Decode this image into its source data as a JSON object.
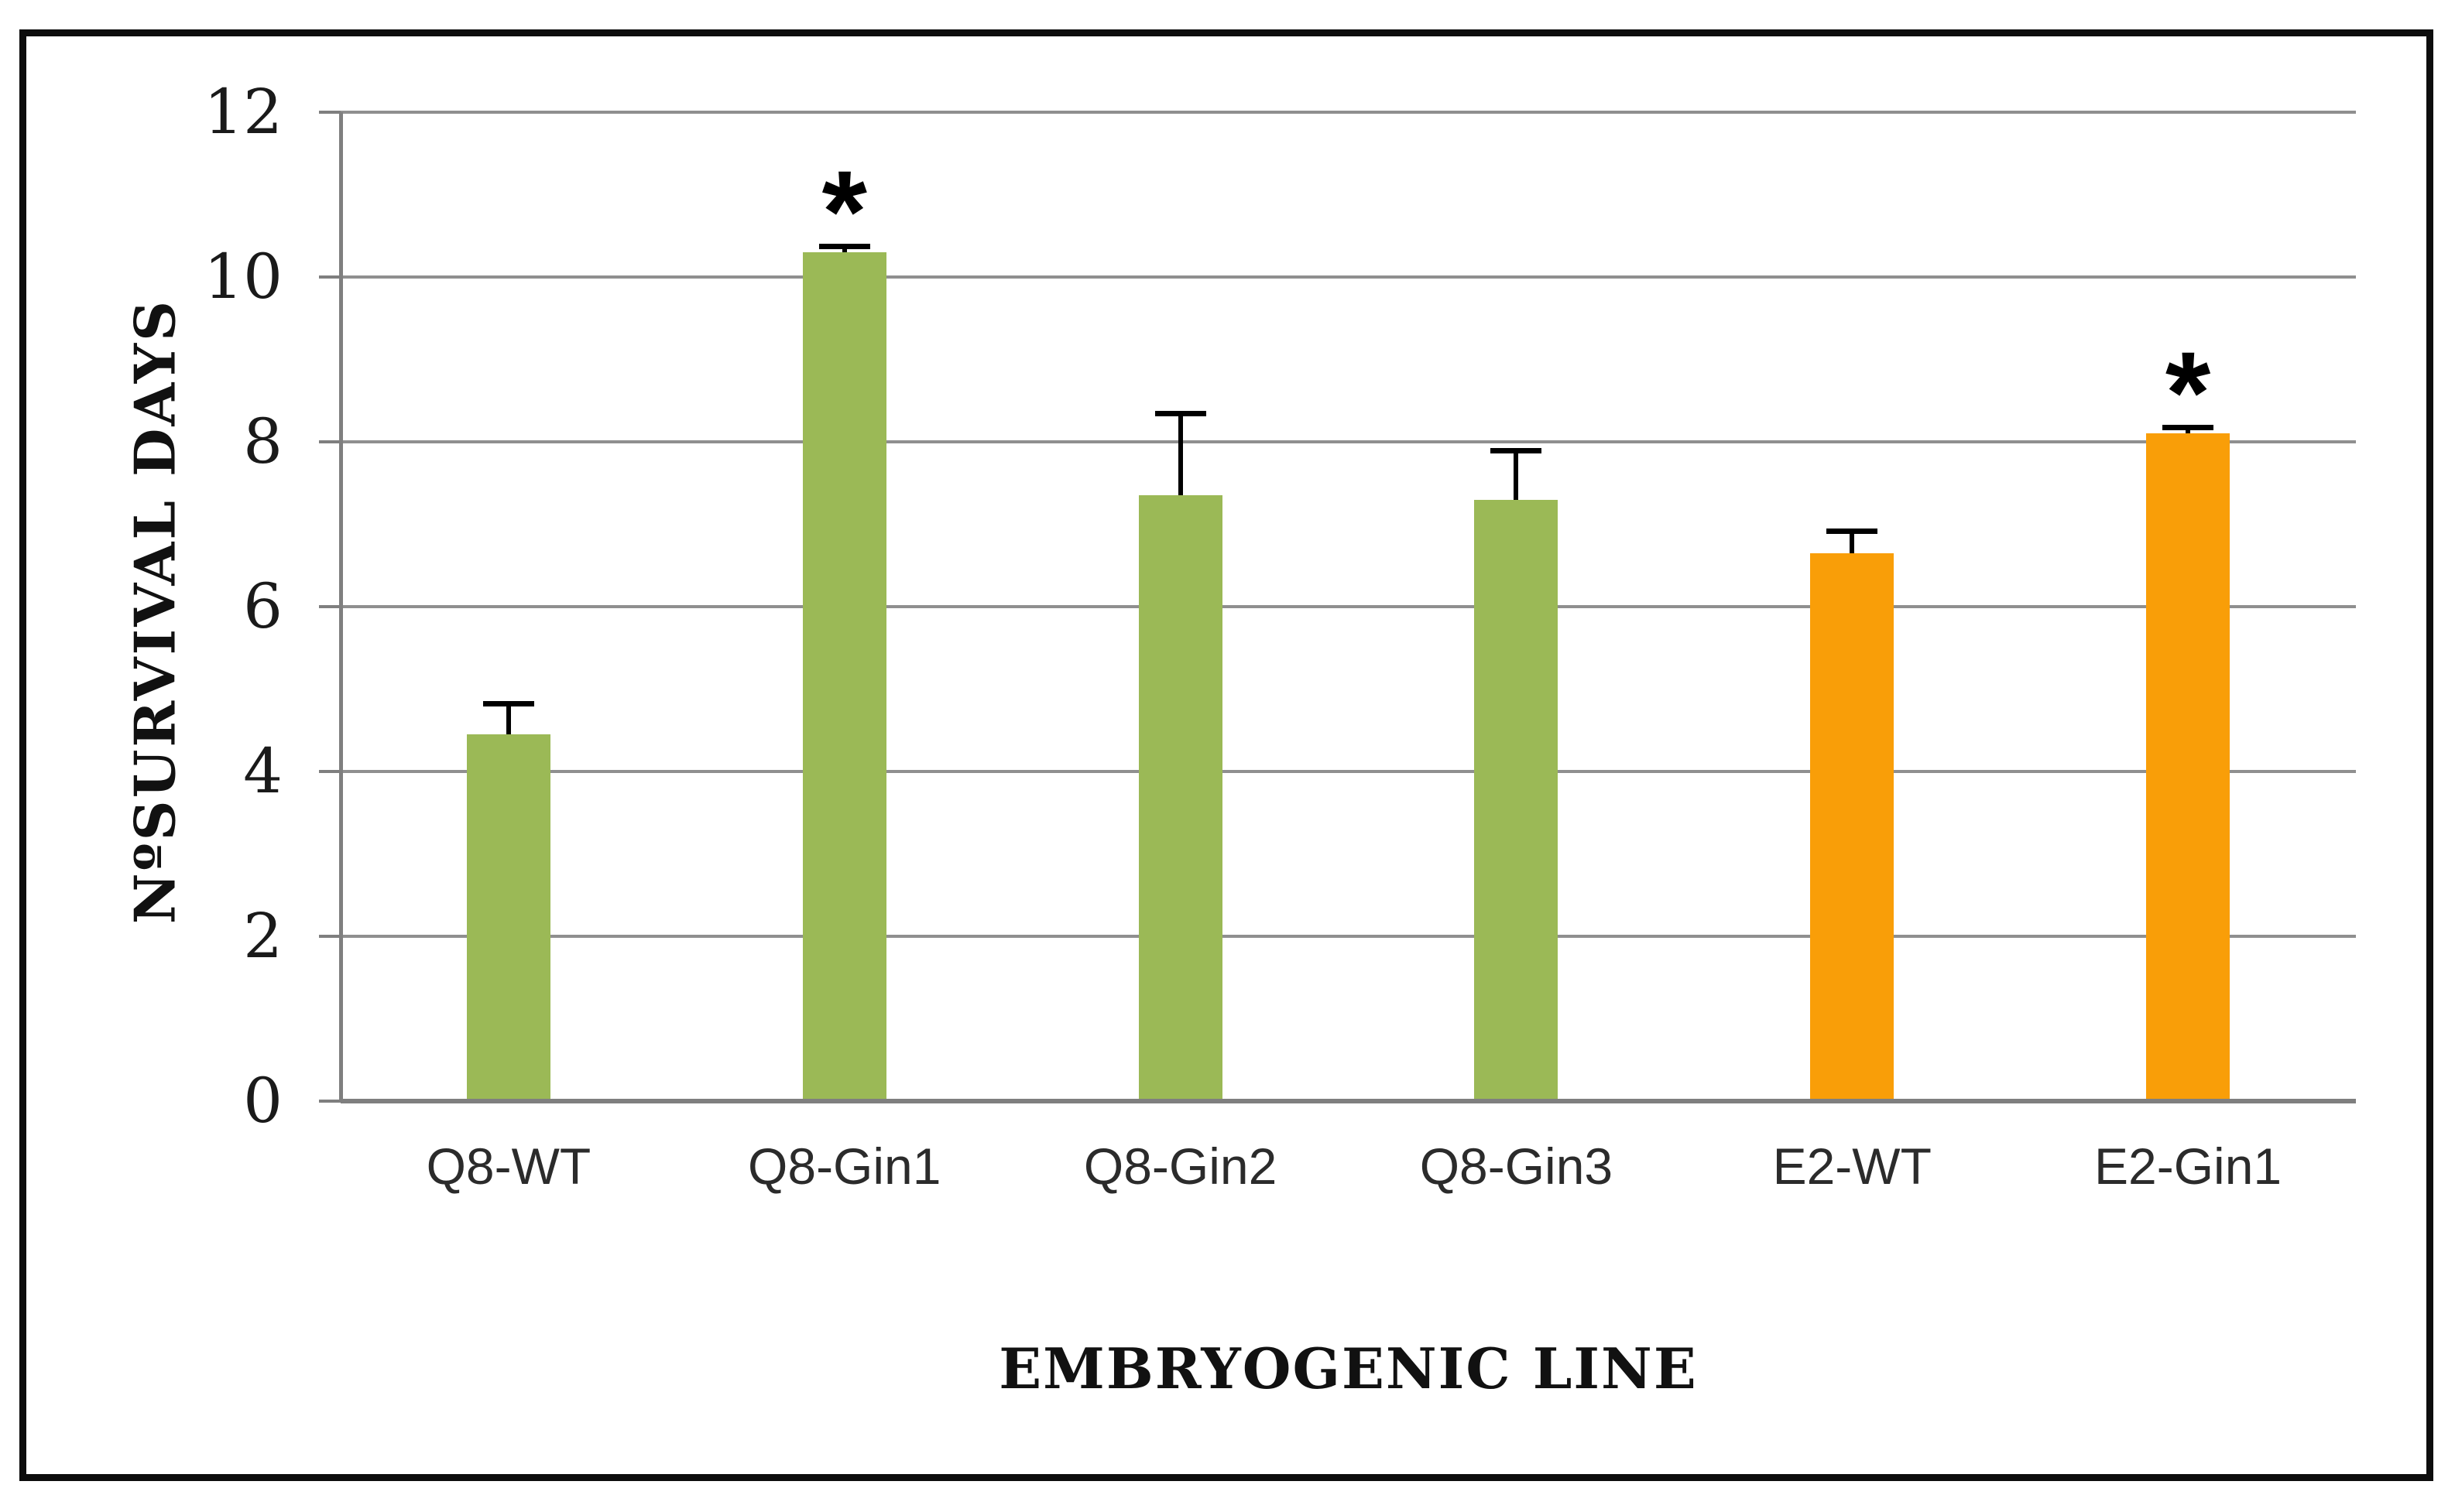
{
  "chart_data": {
    "type": "bar",
    "title": "",
    "xlabel": "EMBRYOGENIC LINE",
    "ylabel": "NºSURVIVAL DAYS",
    "categories": [
      "Q8-WT",
      "Q8-Gin1",
      "Q8-Gin2",
      "Q8-Gin3",
      "E2-WT",
      "E2-Gin1"
    ],
    "values": [
      4.45,
      10.3,
      7.35,
      7.3,
      6.65,
      8.1
    ],
    "errors_upper": [
      0.38,
      0.08,
      1.0,
      0.6,
      0.27,
      0.08
    ],
    "significance_marks": [
      false,
      true,
      false,
      false,
      false,
      true
    ],
    "significance_symbol": "*",
    "bar_colors": [
      "#9BB956",
      "#9BB956",
      "#9BB956",
      "#9BB956",
      "#F99E08",
      "#F99E08"
    ],
    "series_color_legend": {
      "Q8_line_color": "#9BB956",
      "E2_line_color": "#F99E08"
    },
    "ylim": [
      0,
      12
    ],
    "yticks": [
      0,
      2,
      4,
      6,
      8,
      10,
      12
    ],
    "grid": "horizontal",
    "gridline_color": "#8f8f8f",
    "axis_color": "#7f7f7f",
    "error_bar_color": "#000000",
    "frame_border_color": "#0d0d0d",
    "legend": "none"
  }
}
